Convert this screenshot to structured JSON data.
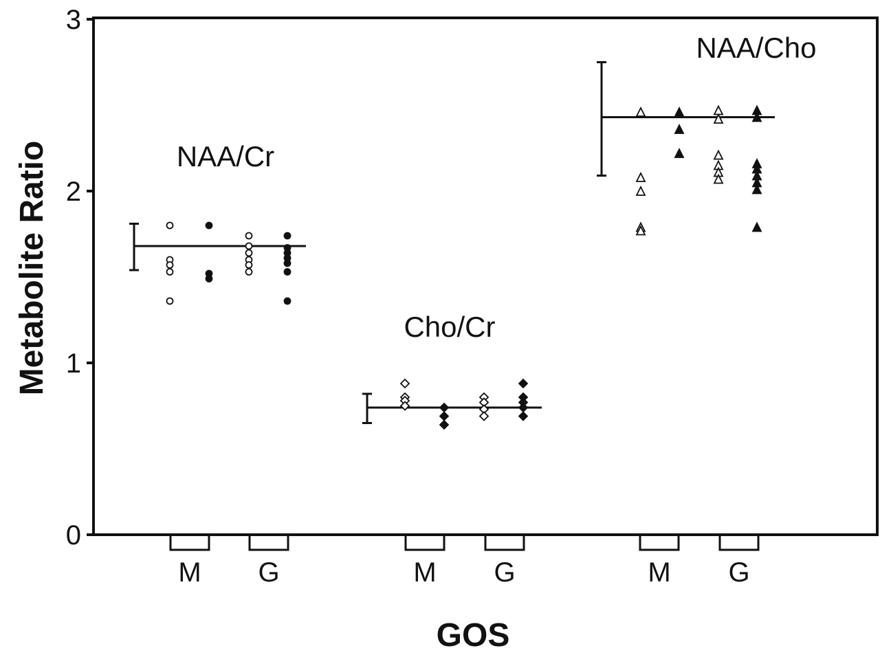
{
  "chart_data": {
    "type": "scatter",
    "title": "",
    "xlabel": "GOS",
    "ylabel": "Metabolite Ratio",
    "ylim": [
      0,
      3
    ],
    "yticks": [
      "0",
      "1",
      "2",
      "3"
    ],
    "groups": [
      "M",
      "G"
    ],
    "series": [
      {
        "name": "NAA/Cr",
        "marker": "circle",
        "mean": 1.68,
        "err_low": 1.54,
        "err_high": 1.81,
        "points": [
          {
            "group": "M",
            "filled": false,
            "values": [
              1.8,
              1.6,
              1.57,
              1.53,
              1.36
            ]
          },
          {
            "group": "M",
            "filled": true,
            "values": [
              1.8,
              1.52,
              1.49
            ]
          },
          {
            "group": "G",
            "filled": false,
            "values": [
              1.74,
              1.68,
              1.64,
              1.6,
              1.57,
              1.53
            ]
          },
          {
            "group": "G",
            "filled": true,
            "values": [
              1.74,
              1.67,
              1.64,
              1.61,
              1.58,
              1.53,
              1.36
            ]
          }
        ]
      },
      {
        "name": "Cho/Cr",
        "marker": "diamond",
        "mean": 0.74,
        "err_low": 0.65,
        "err_high": 0.82,
        "points": [
          {
            "group": "M",
            "filled": false,
            "values": [
              0.88,
              0.8,
              0.78,
              0.75
            ]
          },
          {
            "group": "M",
            "filled": true,
            "values": [
              0.74,
              0.69,
              0.64
            ]
          },
          {
            "group": "G",
            "filled": false,
            "values": [
              0.8,
              0.77,
              0.73,
              0.69
            ]
          },
          {
            "group": "G",
            "filled": true,
            "values": [
              0.88,
              0.8,
              0.77,
              0.74,
              0.69
            ]
          }
        ]
      },
      {
        "name": "NAA/Cho",
        "marker": "triangle",
        "mean": 2.43,
        "err_low": 2.09,
        "err_high": 2.75,
        "points": [
          {
            "group": "M",
            "filled": false,
            "values": [
              2.46,
              2.08,
              2.0,
              1.79,
              1.77
            ]
          },
          {
            "group": "M",
            "filled": true,
            "values": [
              2.46,
              2.36,
              2.22
            ]
          },
          {
            "group": "G",
            "filled": false,
            "values": [
              2.47,
              2.42,
              2.21,
              2.15,
              2.11,
              2.07
            ]
          },
          {
            "group": "G",
            "filled": true,
            "values": [
              2.47,
              2.43,
              2.16,
              2.13,
              2.09,
              2.05,
              2.01,
              1.79
            ]
          }
        ]
      }
    ]
  }
}
